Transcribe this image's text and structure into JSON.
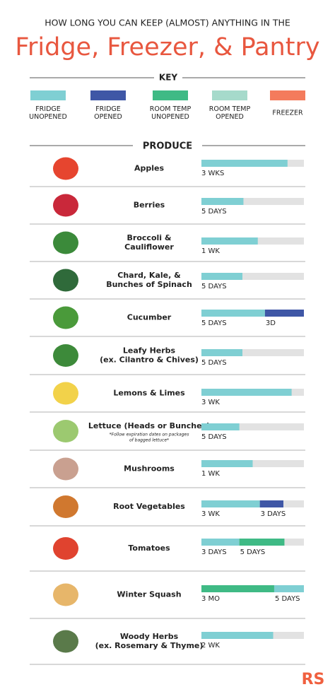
{
  "header": {
    "kicker": "HOW LONG YOU CAN KEEP (ALMOST) ANYTHING IN THE",
    "title": "Fridge, Freezer, & Pantry"
  },
  "key": {
    "title": "KEY",
    "items": [
      {
        "lines": [
          "FRIDGE",
          "UNOPENED"
        ],
        "color": "#7fcfd3"
      },
      {
        "lines": [
          "FRIDGE",
          "OPENED"
        ],
        "color": "#3f57a6"
      },
      {
        "lines": [
          "ROOM TEMP",
          "UNOPENED"
        ],
        "color": "#3fba85"
      },
      {
        "lines": [
          "ROOM TEMP",
          "OPENED"
        ],
        "color": "#a6dacb"
      },
      {
        "lines": [
          "FREEZER"
        ],
        "color": "#f47b5c"
      }
    ]
  },
  "section": "PRODUCE",
  "items": [
    {
      "name": [
        "Apples"
      ],
      "segments": [
        {
          "color": "#7fcfd3",
          "value": 84,
          "label": "3 WKS"
        }
      ]
    },
    {
      "name": [
        "Berries"
      ],
      "segments": [
        {
          "color": "#7fcfd3",
          "value": 41,
          "label": "5 DAYS"
        }
      ]
    },
    {
      "name": [
        "Broccoli &",
        "Cauliflower"
      ],
      "segments": [
        {
          "color": "#7fcfd3",
          "value": 55,
          "label": "1 WK"
        }
      ]
    },
    {
      "name": [
        "Chard, Kale, &",
        "Bunches of Spinach"
      ],
      "segments": [
        {
          "color": "#7fcfd3",
          "value": 40,
          "label": "5 DAYS"
        }
      ]
    },
    {
      "name": [
        "Cucumber"
      ],
      "segments": [
        {
          "color": "#7fcfd3",
          "value": 62,
          "label": "5 DAYS"
        },
        {
          "color": "#3f57a6",
          "value": 38,
          "label": "3D"
        }
      ]
    },
    {
      "name": [
        "Leafy Herbs",
        "(ex. Cilantro & Chives)"
      ],
      "segments": [
        {
          "color": "#7fcfd3",
          "value": 40,
          "label": "5 DAYS"
        }
      ]
    },
    {
      "name": [
        "Lemons & Limes"
      ],
      "segments": [
        {
          "color": "#7fcfd3",
          "value": 88,
          "label": "3 WK"
        }
      ]
    },
    {
      "name": [
        "Lettuce (Heads or Bunches)"
      ],
      "note": [
        "*Follow expiration dates on packages",
        "of bagged lettuce*"
      ],
      "segments": [
        {
          "color": "#7fcfd3",
          "value": 37,
          "label": "5 DAYS"
        }
      ]
    },
    {
      "name": [
        "Mushrooms"
      ],
      "segments": [
        {
          "color": "#7fcfd3",
          "value": 50,
          "label": "1 WK"
        }
      ]
    },
    {
      "name": [
        "Root Vegetables"
      ],
      "segments": [
        {
          "color": "#7fcfd3",
          "value": 57,
          "label": "3 WK"
        },
        {
          "color": "#3f57a6",
          "value": 23,
          "label": "3 DAYS"
        }
      ]
    },
    {
      "name": [
        "Tomatoes"
      ],
      "segments": [
        {
          "color": "#7fcfd3",
          "value": 37,
          "label": "3 DAYS"
        },
        {
          "color": "#3fba85",
          "value": 44,
          "label": "5 DAYS"
        }
      ]
    },
    {
      "name": [
        "Winter Squash"
      ],
      "segments": [
        {
          "color": "#3fba85",
          "value": 71,
          "label": "3 MO"
        },
        {
          "color": "#7fcfd3",
          "value": 29,
          "label": "5 DAYS"
        }
      ]
    },
    {
      "name": [
        "Woody Herbs",
        "(ex. Rosemary & Thyme)"
      ],
      "segments": [
        {
          "color": "#7fcfd3",
          "value": 70,
          "label": "2 WK"
        }
      ]
    }
  ],
  "logo": "RS"
}
